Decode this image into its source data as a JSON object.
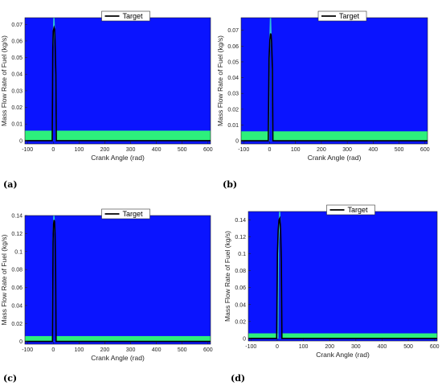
{
  "chart_data": [
    {
      "type": "area",
      "panel_label": "(a)",
      "xlabel": "Crank Angle (rad)",
      "ylabel": "Mass Flow Rate of Fuel (kg/s)",
      "xlim": [
        -110,
        610
      ],
      "ylim": [
        -0.002,
        0.074
      ],
      "xticks": [
        -100,
        0,
        100,
        200,
        300,
        400,
        500,
        600
      ],
      "yticks": [
        0,
        0.01,
        0.02,
        0.03,
        0.04,
        0.05,
        0.06,
        0.07
      ],
      "legend": [
        "Target"
      ],
      "legend_position": "top-center",
      "colors": {
        "background": "#0a14ff",
        "band": "#2df07c",
        "spike": "#33e0d0",
        "target": "#000000"
      },
      "band_top": 0.006,
      "target": {
        "x": [
          -110,
          -4,
          -2,
          0,
          3,
          5,
          7,
          10,
          12,
          610
        ],
        "y": [
          0,
          0,
          0.055,
          0.066,
          0.068,
          0.067,
          0.06,
          0.04,
          0,
          0
        ]
      }
    },
    {
      "type": "area",
      "panel_label": "(b)",
      "xlabel": "Crank Angle (rad)",
      "ylabel": "Mass Flow Rate of Fuel (kg/s)",
      "xlim": [
        -110,
        610
      ],
      "ylim": [
        -0.002,
        0.078
      ],
      "xticks": [
        -100,
        0,
        100,
        200,
        300,
        400,
        500,
        600
      ],
      "yticks": [
        0,
        0.01,
        0.02,
        0.03,
        0.04,
        0.05,
        0.06,
        0.07
      ],
      "legend": [
        "Target"
      ],
      "legend_position": "top-center",
      "colors": {
        "background": "#0a14ff",
        "band": "#2df07c",
        "spike": "#33e0d0",
        "target": "#000000"
      },
      "band_top": 0.006,
      "target": {
        "x": [
          -110,
          -5,
          -2,
          1,
          4,
          6,
          8,
          11,
          13,
          610
        ],
        "y": [
          0,
          0,
          0.052,
          0.064,
          0.068,
          0.067,
          0.062,
          0.045,
          0,
          0
        ]
      }
    },
    {
      "type": "area",
      "panel_label": "(c)",
      "xlabel": "Crank Angle (rad)",
      "ylabel": "Mass Flow Rate of Fuel (kg/s)",
      "xlim": [
        -110,
        610
      ],
      "ylim": [
        -0.003,
        0.14
      ],
      "xticks": [
        -100,
        0,
        100,
        200,
        300,
        400,
        500,
        600
      ],
      "yticks": [
        0,
        0.02,
        0.04,
        0.06,
        0.08,
        0.1,
        0.12,
        0.14
      ],
      "legend": [
        "Target"
      ],
      "legend_position": "top-center",
      "colors": {
        "background": "#0a14ff",
        "band": "#2df07c",
        "spike": "#33e0d0",
        "target": "#000000"
      },
      "band_top": 0.006,
      "target": {
        "x": [
          -110,
          -3,
          -1,
          1,
          3,
          5,
          7,
          9,
          11,
          610
        ],
        "y": [
          0,
          0,
          0.11,
          0.13,
          0.135,
          0.133,
          0.12,
          0.08,
          0,
          0
        ]
      }
    },
    {
      "type": "area",
      "panel_label": "(d)",
      "xlabel": "Crank Angle (rad)",
      "ylabel": "Mass Flow Rate of Fuel (kg/s)",
      "xlim": [
        -110,
        610
      ],
      "ylim": [
        -0.003,
        0.15
      ],
      "xticks": [
        -100,
        0,
        100,
        200,
        300,
        400,
        500,
        600
      ],
      "yticks": [
        0,
        0.02,
        0.04,
        0.06,
        0.08,
        0.1,
        0.12,
        0.14
      ],
      "legend": [
        "Target"
      ],
      "legend_position": "top-center",
      "colors": {
        "background": "#0a14ff",
        "band": "#2df07c",
        "spike": "#33e0d0",
        "target": "#000000"
      },
      "band_top": 0.006,
      "target": {
        "x": [
          -110,
          -2,
          1,
          4,
          7,
          10,
          13,
          16,
          18,
          610
        ],
        "y": [
          0,
          0,
          0.1,
          0.128,
          0.14,
          0.142,
          0.13,
          0.09,
          0,
          0
        ]
      }
    }
  ]
}
